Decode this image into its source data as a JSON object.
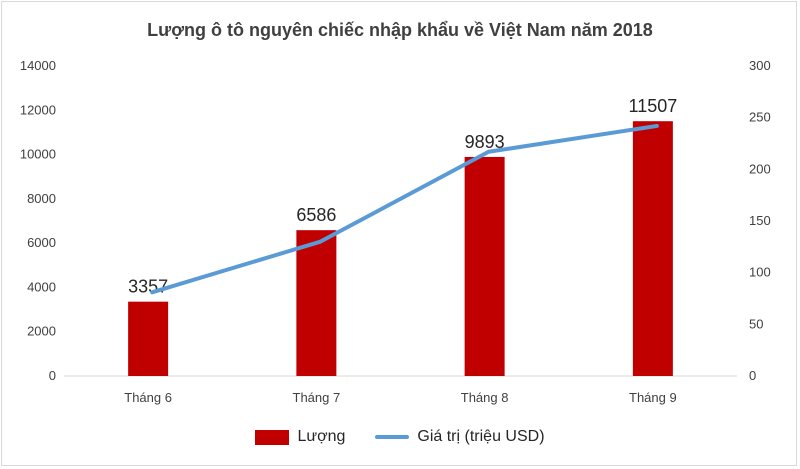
{
  "chart_data": {
    "title": "Lượng ô tô nguyên chiếc nhập khẩu về Việt Nam năm 2018",
    "categories": [
      "Tháng 6",
      "Tháng 7",
      "Tháng 8",
      "Tháng 9"
    ],
    "series": [
      {
        "name": "Lượng",
        "type": "bar",
        "axis": "left",
        "color": "#c00000",
        "values": [
          3357,
          6586,
          9893,
          11507
        ],
        "data_labels": [
          "3357",
          "6586",
          "9893",
          "11507"
        ]
      },
      {
        "name": "Giá trị (triệu USD)",
        "type": "line",
        "axis": "right",
        "color": "#5b9bd5",
        "values": [
          81,
          130,
          217,
          242
        ]
      }
    ],
    "y_left": {
      "min": 0,
      "max": 14000,
      "ticks": [
        "0",
        "2000",
        "4000",
        "6000",
        "8000",
        "10000",
        "12000",
        "14000"
      ]
    },
    "y_right": {
      "min": 0,
      "max": 300,
      "ticks": [
        "0",
        "50",
        "100",
        "150",
        "200",
        "250",
        "300"
      ]
    },
    "grid": false,
    "legend_position": "bottom"
  }
}
